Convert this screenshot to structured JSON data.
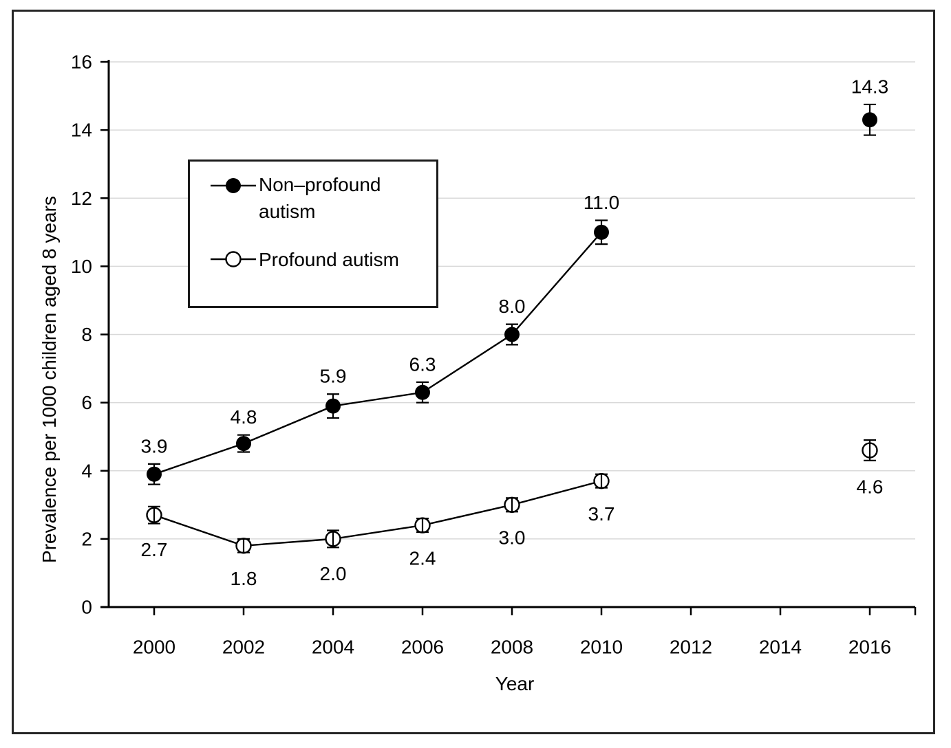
{
  "chart_data": {
    "type": "line",
    "title": "",
    "xlabel": "Year",
    "ylabel": "Prevalence per 1000 children aged 8 years",
    "xlim": [
      1999,
      2017
    ],
    "ylim": [
      0,
      16
    ],
    "x_ticks": [
      2000,
      2002,
      2004,
      2006,
      2008,
      2010,
      2012,
      2014,
      2016
    ],
    "y_ticks": [
      0,
      2,
      4,
      6,
      8,
      10,
      12,
      14,
      16
    ],
    "grid": "horizontal",
    "legend_position": "upper-left-inside",
    "series": [
      {
        "name": "Non–profound autism",
        "marker": "filled-circle",
        "label_side": "above",
        "connected_through": 2010,
        "x": [
          2000,
          2002,
          2004,
          2006,
          2008,
          2010,
          2016
        ],
        "y": [
          3.9,
          4.8,
          5.9,
          6.3,
          8.0,
          11.0,
          14.3
        ],
        "error": [
          0.3,
          0.25,
          0.35,
          0.3,
          0.3,
          0.35,
          0.45
        ],
        "labels": [
          "3.9",
          "4.8",
          "5.9",
          "6.3",
          "8.0",
          "11.0",
          "14.3"
        ]
      },
      {
        "name": "Profound autism",
        "marker": "open-circle",
        "label_side": "below",
        "connected_through": 2010,
        "x": [
          2000,
          2002,
          2004,
          2006,
          2008,
          2010,
          2016
        ],
        "y": [
          2.7,
          1.8,
          2.0,
          2.4,
          3.0,
          3.7,
          4.6
        ],
        "error": [
          0.25,
          0.2,
          0.25,
          0.2,
          0.2,
          0.2,
          0.3
        ],
        "labels": [
          "2.7",
          "1.8",
          "2.0",
          "2.4",
          "3.0",
          "3.7",
          "4.6"
        ]
      }
    ],
    "colors": {
      "series": "#000000",
      "grid": "#d9d9d9",
      "axis": "#000000",
      "background": "#ffffff",
      "figure_border": "#262626"
    }
  }
}
